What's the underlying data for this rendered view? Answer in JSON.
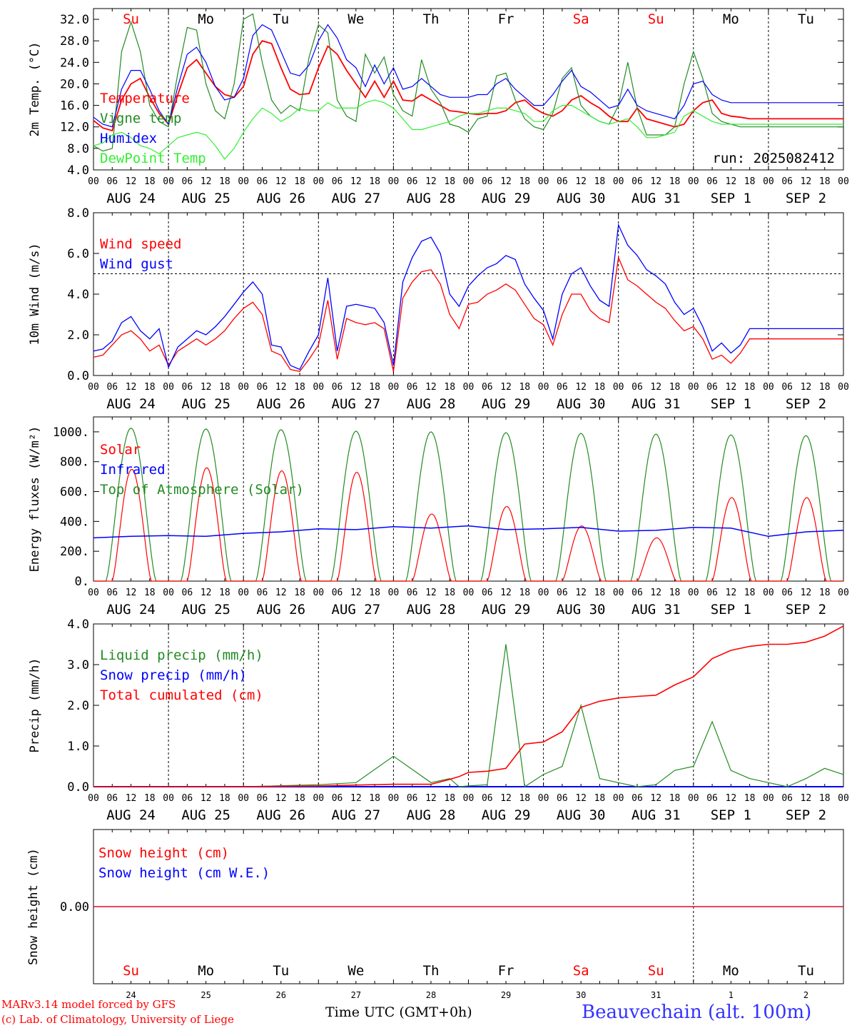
{
  "colors": {
    "red": "#ff0000",
    "green": "#228b22",
    "blue": "#0000ff",
    "lightgreen": "#33ee33",
    "black": "#000000"
  },
  "weekdays": [
    "Su",
    "Mo",
    "Tu",
    "We",
    "Th",
    "Fr",
    "Sa",
    "Su",
    "Mo",
    "Tu"
  ],
  "weekday_colors": [
    "#ff0000",
    "#000000",
    "#000000",
    "#000000",
    "#000000",
    "#000000",
    "#ff0000",
    "#ff0000",
    "#000000",
    "#000000"
  ],
  "dates": [
    "AUG 24",
    "AUG 25",
    "AUG 26",
    "AUG 27",
    "AUG 28",
    "AUG 29",
    "AUG 30",
    "AUG 31",
    "SEP  1",
    "SEP  2"
  ],
  "day_numbers": [
    "24",
    "25",
    "26",
    "27",
    "28",
    "29",
    "30",
    "31",
    "1",
    "2"
  ],
  "hour_labels": [
    "00",
    "06",
    "12",
    "18"
  ],
  "final_hour_label": "00",
  "footer": {
    "line1": "MARv3.14 model forced by GFS",
    "line2": "(c) Lab. of Climatology, University of Liege",
    "time_label": "Time UTC (GMT+0h)",
    "station": "Beauvechain (alt. 100m)"
  },
  "chart_data": [
    {
      "type": "line",
      "ylabel": "2m Temp. (°C)",
      "ylim": [
        4,
        34
      ],
      "yticks": [
        "4.0",
        "8.0",
        "12.0",
        "16.0",
        "20.0",
        "24.0",
        "28.0",
        "32.0"
      ],
      "annotation": "run: 2025082412",
      "x_hours": [
        0,
        3,
        6,
        9,
        12,
        15,
        18,
        21,
        24,
        27,
        30,
        33,
        36,
        39,
        42,
        45,
        48,
        51,
        54,
        57,
        60,
        63,
        66,
        69,
        72,
        75,
        78,
        81,
        84,
        87,
        90,
        93,
        96,
        99,
        102,
        105,
        108,
        111,
        114,
        117,
        120,
        123,
        126,
        129,
        132,
        135,
        138,
        141,
        144,
        147,
        150,
        153,
        156,
        159,
        162,
        165,
        168,
        171,
        174,
        177,
        180,
        183,
        186,
        189,
        192,
        195,
        198,
        201,
        204,
        207,
        210,
        213,
        216,
        219,
        222,
        225,
        228,
        231,
        234,
        237,
        240
      ],
      "series": [
        {
          "name": "Temperature",
          "color": "#ff0000",
          "values": [
            13.2,
            11.8,
            11.3,
            17.0,
            20.0,
            21.0,
            17.5,
            14.5,
            12.5,
            18.0,
            23.0,
            24.5,
            22.0,
            19.5,
            18.0,
            17.5,
            19.5,
            25.5,
            28.0,
            27.5,
            23.0,
            19.0,
            18.0,
            18.2,
            23.0,
            27.0,
            25.5,
            22.5,
            20.0,
            17.5,
            20.5,
            17.5,
            20.5,
            17.0,
            16.8,
            18.0,
            17.0,
            16.0,
            15.0,
            14.8,
            14.5,
            14.3,
            14.5,
            14.5,
            15.0,
            16.5,
            17.0,
            15.5,
            14.5,
            14.0,
            15.0,
            17.0,
            17.8,
            16.5,
            15.5,
            14.0,
            13.0,
            13.0,
            15.5,
            13.5,
            13.0,
            12.5,
            12.0,
            12.5,
            15.0,
            16.5,
            17.0,
            14.5,
            14.0,
            13.8,
            13.5,
            13.5,
            13.5,
            13.5,
            13.5,
            13.5,
            13.5,
            13.5,
            13.5,
            13.5,
            13.5
          ]
        },
        {
          "name": "Vigne temp",
          "color": "#228b22",
          "values": [
            8.5,
            7.5,
            8.0,
            26.0,
            31.5,
            26.0,
            16.0,
            13.0,
            12.0,
            22.0,
            30.5,
            30.0,
            20.0,
            15.0,
            13.5,
            20.0,
            32.0,
            33.0,
            24.0,
            17.0,
            14.5,
            16.0,
            15.0,
            25.0,
            31.0,
            29.5,
            17.0,
            14.0,
            13.0,
            25.5,
            22.0,
            25.0,
            18.0,
            15.0,
            14.0,
            24.5,
            19.0,
            16.5,
            12.5,
            12.0,
            11.0,
            13.5,
            14.0,
            21.5,
            22.0,
            17.0,
            13.5,
            12.0,
            11.5,
            14.5,
            21.0,
            23.0,
            16.0,
            14.0,
            13.0,
            12.5,
            16.0,
            24.0,
            15.5,
            10.5,
            10.5,
            10.5,
            12.0,
            20.0,
            26.0,
            21.0,
            14.5,
            13.0,
            12.5,
            12.0,
            12.0,
            12.0,
            12.0,
            12.0,
            12.0,
            12.0,
            12.0,
            12.0,
            12.0,
            12.0,
            12.0
          ]
        },
        {
          "name": "Humidex",
          "color": "#0000ff",
          "values": [
            13.8,
            12.5,
            12.0,
            19.0,
            22.5,
            22.5,
            19.0,
            15.0,
            12.5,
            19.5,
            25.5,
            26.8,
            24.0,
            19.5,
            17.0,
            17.5,
            21.0,
            29.0,
            31.0,
            30.0,
            26.0,
            22.0,
            21.5,
            23.5,
            28.0,
            31.0,
            28.5,
            24.5,
            23.0,
            19.5,
            23.5,
            20.0,
            23.0,
            19.0,
            19.5,
            21.0,
            19.5,
            18.0,
            17.5,
            17.5,
            17.5,
            18.0,
            18.0,
            20.0,
            21.0,
            19.0,
            17.5,
            16.0,
            16.0,
            18.0,
            20.5,
            22.5,
            19.5,
            18.5,
            17.0,
            15.5,
            16.0,
            19.0,
            16.0,
            15.0,
            14.5,
            14.0,
            13.5,
            16.0,
            20.0,
            20.5,
            18.0,
            17.0,
            16.5,
            16.5,
            16.5,
            16.5,
            16.5,
            16.5,
            16.5,
            16.5,
            16.5,
            16.5,
            16.5,
            16.5,
            16.5
          ]
        },
        {
          "name": "DewPoint Temp",
          "color": "#33ee33",
          "values": [
            8.5,
            9.0,
            10.5,
            11.0,
            10.0,
            8.5,
            8.0,
            7.0,
            8.5,
            10.0,
            10.5,
            11.0,
            10.5,
            8.5,
            6.0,
            8.0,
            11.0,
            13.5,
            15.5,
            14.5,
            13.0,
            14.0,
            15.5,
            15.0,
            15.0,
            16.5,
            15.5,
            15.5,
            15.5,
            16.5,
            17.0,
            16.5,
            15.5,
            13.5,
            11.5,
            11.5,
            12.0,
            12.5,
            13.0,
            14.0,
            14.5,
            14.5,
            15.0,
            15.5,
            15.5,
            15.0,
            14.5,
            13.0,
            13.0,
            15.0,
            16.0,
            16.0,
            15.0,
            14.0,
            13.0,
            12.5,
            13.0,
            13.5,
            12.0,
            10.0,
            10.0,
            10.5,
            11.0,
            14.0,
            15.0,
            14.0,
            13.0,
            12.5,
            12.5,
            12.5,
            12.5,
            12.5,
            12.5,
            12.5,
            12.5,
            12.5,
            12.5,
            12.5,
            12.5,
            12.5,
            12.5
          ]
        }
      ]
    },
    {
      "type": "line",
      "ylabel": "10m Wind (m/s)",
      "ylim": [
        0,
        8
      ],
      "yticks": [
        "0.0",
        "2.0",
        "4.0",
        "6.0",
        "8.0"
      ],
      "reference_line": 5.0,
      "x_hours": [
        0,
        3,
        6,
        9,
        12,
        15,
        18,
        21,
        24,
        27,
        30,
        33,
        36,
        39,
        42,
        45,
        48,
        51,
        54,
        57,
        60,
        63,
        66,
        69,
        72,
        75,
        78,
        81,
        84,
        87,
        90,
        93,
        96,
        99,
        102,
        105,
        108,
        111,
        114,
        117,
        120,
        123,
        126,
        129,
        132,
        135,
        138,
        141,
        144,
        147,
        150,
        153,
        156,
        159,
        162,
        165,
        168,
        171,
        174,
        177,
        180,
        183,
        186,
        189,
        192,
        195,
        198,
        201,
        204,
        207,
        210,
        213,
        216,
        219,
        222,
        225,
        228,
        231,
        234,
        237,
        240
      ],
      "series": [
        {
          "name": "Wind speed",
          "color": "#ff0000",
          "values": [
            0.9,
            1.0,
            1.5,
            2.0,
            2.2,
            1.8,
            1.2,
            1.5,
            0.5,
            1.2,
            1.5,
            1.8,
            1.5,
            1.8,
            2.2,
            2.8,
            3.3,
            3.6,
            3.0,
            1.2,
            1.0,
            0.3,
            0.2,
            0.8,
            1.5,
            3.7,
            0.8,
            2.8,
            2.6,
            2.5,
            2.6,
            2.3,
            0.2,
            3.8,
            4.6,
            5.1,
            5.2,
            4.5,
            3.0,
            2.3,
            3.5,
            3.6,
            4.0,
            4.2,
            4.5,
            4.2,
            3.5,
            2.8,
            2.5,
            1.5,
            3.0,
            4.0,
            4.0,
            3.2,
            2.8,
            2.6,
            5.8,
            4.7,
            4.4,
            4.0,
            3.6,
            3.3,
            2.7,
            2.2,
            2.4,
            1.8,
            0.8,
            1.0,
            0.6,
            1.1,
            1.8,
            1.8,
            1.8,
            1.8,
            1.8,
            1.8,
            1.8,
            1.8,
            1.8,
            1.8,
            1.8
          ]
        },
        {
          "name": "Wind gust",
          "color": "#0000ff",
          "values": [
            1.2,
            1.3,
            1.7,
            2.6,
            2.9,
            2.2,
            1.8,
            2.3,
            0.4,
            1.4,
            1.8,
            2.2,
            2.0,
            2.4,
            2.9,
            3.5,
            4.1,
            4.6,
            4.0,
            1.5,
            1.4,
            0.5,
            0.3,
            1.2,
            2.0,
            4.8,
            1.2,
            3.4,
            3.5,
            3.4,
            3.3,
            2.6,
            0.5,
            4.6,
            5.8,
            6.6,
            6.8,
            6.0,
            4.0,
            3.4,
            4.4,
            4.9,
            5.3,
            5.5,
            5.9,
            5.7,
            4.5,
            3.8,
            3.2,
            1.8,
            4.0,
            5.0,
            5.3,
            4.4,
            3.7,
            3.4,
            7.4,
            6.4,
            5.9,
            5.2,
            4.9,
            4.5,
            3.6,
            3.0,
            3.3,
            2.4,
            1.2,
            1.6,
            1.1,
            1.5,
            2.3,
            2.3,
            2.3,
            2.3,
            2.3,
            2.3,
            2.3,
            2.3,
            2.3,
            2.3,
            2.3
          ]
        }
      ]
    },
    {
      "type": "line",
      "ylabel": "Energy fluxes (W/m²)",
      "ylim": [
        0,
        1100
      ],
      "yticks": [
        "0.",
        "200.",
        "400.",
        "600.",
        "800.",
        "1000."
      ],
      "series": [
        {
          "name": "Solar",
          "color": "#ff0000",
          "daily_peak": [
            750,
            760,
            740,
            730,
            450,
            500,
            370,
            290,
            560,
            560
          ]
        },
        {
          "name": "Infrared",
          "color": "#0000ff",
          "x_hours": [
            0,
            12,
            24,
            36,
            48,
            60,
            72,
            84,
            96,
            108,
            120,
            132,
            144,
            156,
            168,
            180,
            192,
            204,
            216,
            228,
            240
          ],
          "values": [
            290,
            300,
            305,
            300,
            320,
            330,
            350,
            345,
            365,
            355,
            370,
            345,
            350,
            360,
            335,
            340,
            360,
            355,
            300,
            330,
            340
          ]
        },
        {
          "name": "Top of Atmosphere (Solar)",
          "color": "#228b22",
          "daily_peak": [
            1025,
            1020,
            1015,
            1005,
            1000,
            995,
            990,
            985,
            980,
            975
          ]
        }
      ]
    },
    {
      "type": "line",
      "ylabel": "Precip (mm/h)",
      "ylim": [
        0,
        4
      ],
      "yticks": [
        "0.0",
        "1.0",
        "2.0",
        "3.0",
        "4.0"
      ],
      "x_hours": [
        0,
        24,
        48,
        72,
        84,
        96,
        108,
        114,
        117,
        120,
        126,
        132,
        138,
        144,
        150,
        156,
        162,
        168,
        174,
        180,
        186,
        192,
        198,
        204,
        210,
        216,
        222,
        228,
        234,
        240
      ],
      "series": [
        {
          "name": "Liquid precip (mm/h)",
          "color": "#228b22",
          "values": [
            0,
            0,
            0,
            0.05,
            0.1,
            0.75,
            0.1,
            0.2,
            0,
            0.02,
            0.05,
            3.5,
            0,
            0.3,
            0.5,
            2.0,
            0.2,
            0.1,
            0,
            0.05,
            0.4,
            0.5,
            1.6,
            0.4,
            0.2,
            0.1,
            0,
            0.2,
            0.45,
            0.3
          ]
        },
        {
          "name": "Snow precip (mm/h)",
          "color": "#0000ff",
          "values": [
            0,
            0,
            0,
            0,
            0,
            0,
            0,
            0,
            0,
            0,
            0,
            0,
            0,
            0,
            0,
            0,
            0,
            0,
            0,
            0,
            0,
            0,
            0,
            0,
            0,
            0,
            0,
            0,
            0,
            0
          ]
        },
        {
          "name": "Total cumulated (cm)",
          "color": "#ff0000",
          "values": [
            0,
            0,
            0,
            0.02,
            0.04,
            0.06,
            0.06,
            0.18,
            0.25,
            0.35,
            0.38,
            0.45,
            1.05,
            1.1,
            1.35,
            1.95,
            2.1,
            2.18,
            2.22,
            2.25,
            2.5,
            2.7,
            3.15,
            3.35,
            3.45,
            3.5,
            3.5,
            3.55,
            3.7,
            3.95
          ]
        }
      ]
    },
    {
      "type": "line",
      "ylabel": "Snow height (cm)",
      "ytick": "0.00",
      "series": [
        {
          "name": "Snow height (cm)",
          "color": "#ff0000",
          "values": [
            0,
            0
          ]
        },
        {
          "name": "Snow height (cm W.E.)",
          "color": "#0000ff",
          "values": [
            0,
            0
          ]
        }
      ]
    }
  ]
}
